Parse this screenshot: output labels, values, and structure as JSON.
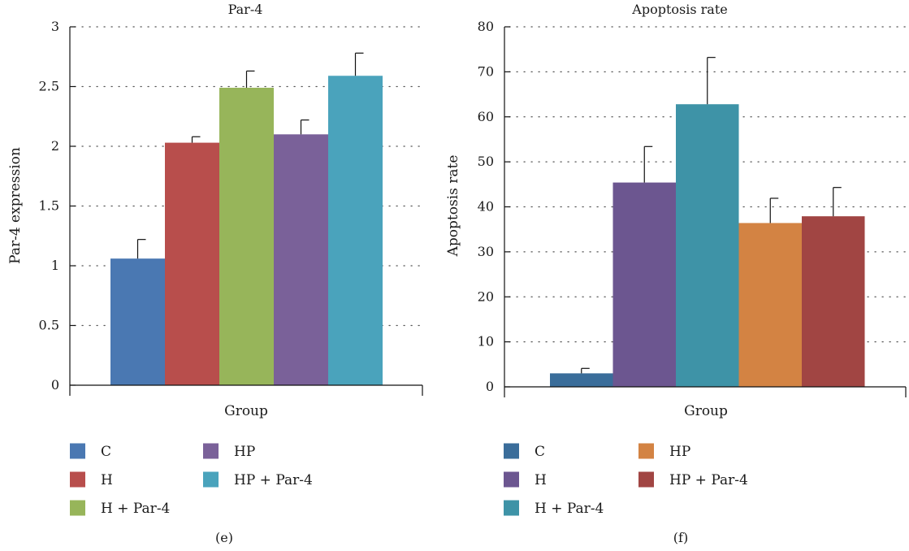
{
  "chart_data": [
    {
      "type": "bar",
      "panel_label": "(e)",
      "title": "Par-4",
      "xlabel": "Group",
      "ylabel": "Par-4 expression",
      "ylim": [
        0,
        3
      ],
      "yticks": [
        0,
        0.5,
        1,
        1.5,
        2,
        2.5,
        3
      ],
      "ytick_labels": [
        "0",
        "0.5",
        "1",
        "1.5",
        "2",
        "2.5",
        "3"
      ],
      "grid": true,
      "legend_placement": "bottom",
      "categories": [
        "C",
        "H",
        "H + Par-4",
        "HP",
        "HP + Par-4"
      ],
      "values": [
        1.06,
        2.03,
        2.49,
        2.1,
        2.59
      ],
      "errors": [
        0.16,
        0.05,
        0.14,
        0.12,
        0.19
      ],
      "colors": [
        "#4a78b2",
        "#b84e4c",
        "#97b55a",
        "#7a6199",
        "#4aa3bc"
      ]
    },
    {
      "type": "bar",
      "panel_label": "(f)",
      "title": "Apoptosis rate",
      "xlabel": "Group",
      "ylabel": "Apoptosis rate",
      "ylim": [
        0,
        80
      ],
      "yticks": [
        0,
        10,
        20,
        30,
        40,
        50,
        60,
        70,
        80
      ],
      "ytick_labels": [
        "0",
        "10",
        "20",
        "30",
        "40",
        "50",
        "60",
        "70",
        "80"
      ],
      "grid": true,
      "legend_placement": "bottom",
      "categories": [
        "C",
        "H",
        "H + Par-4",
        "HP",
        "HP + Par-4"
      ],
      "values": [
        3.0,
        45.4,
        62.8,
        36.4,
        37.9
      ],
      "errors": [
        1.1,
        8.0,
        10.4,
        5.5,
        6.4
      ],
      "colors": [
        "#3a6d9a",
        "#6c5690",
        "#3e93a7",
        "#d38343",
        "#a14543"
      ]
    }
  ]
}
